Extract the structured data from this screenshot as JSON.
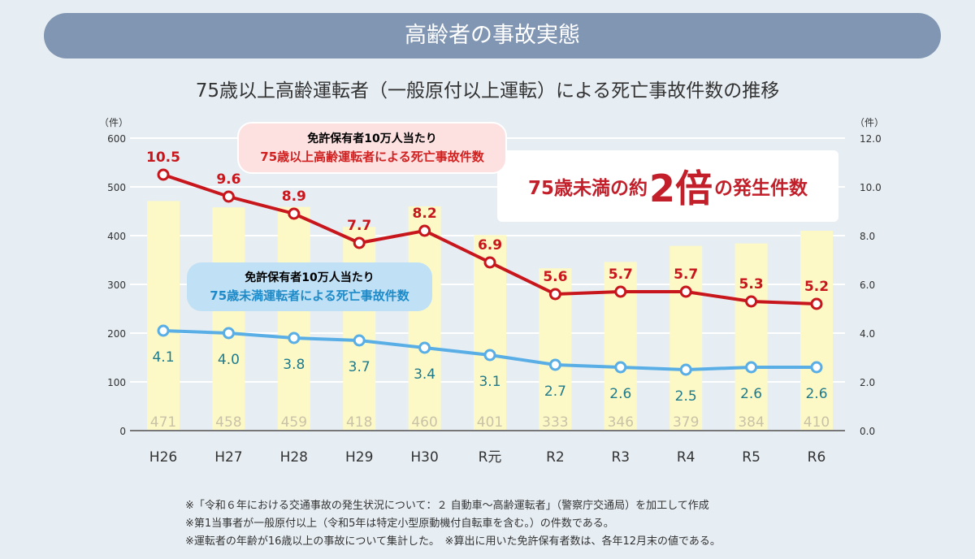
{
  "banner": {
    "title": "高齢者の事故実態"
  },
  "chart_data": {
    "type": "bar+line",
    "title": "75歳以上高齢運転者（一般原付以上運転）による死亡事故件数の推移",
    "categories": [
      "H26",
      "H27",
      "H28",
      "H29",
      "H30",
      "R元",
      "R2",
      "R3",
      "R4",
      "R5",
      "R6"
    ],
    "left_axis": {
      "unit": "（件）",
      "range": [
        0,
        600
      ],
      "ticks": [
        "0",
        "100",
        "200",
        "300",
        "400",
        "500",
        "600"
      ]
    },
    "right_axis": {
      "unit": "（件）",
      "range": [
        0,
        12
      ],
      "ticks": [
        "0.0",
        "2.0",
        "4.0",
        "6.0",
        "8.0",
        "10.0",
        "12.0"
      ]
    },
    "bars": {
      "axis": "left",
      "values": [
        471,
        458,
        459,
        418,
        460,
        401,
        333,
        346,
        379,
        384,
        410
      ],
      "color": "#fdf9c6"
    },
    "series": [
      {
        "name": "免許保有者10万人当たり 75歳以上高齢運転者による死亡事故件数",
        "axis": "right",
        "color": "#c8161d",
        "values": [
          10.5,
          9.6,
          8.9,
          7.7,
          8.2,
          6.9,
          5.6,
          5.7,
          5.7,
          5.3,
          5.2
        ],
        "labels": [
          "10.5",
          "9.6",
          "8.9",
          "7.7",
          "8.2",
          "6.9",
          "5.6",
          "5.7",
          "5.7",
          "5.3",
          "5.2"
        ]
      },
      {
        "name": "免許保有者10万人当たり 75歳未満運転者による死亡事故件数",
        "axis": "right",
        "color": "#5aaee6",
        "values": [
          4.1,
          4.0,
          3.8,
          3.7,
          3.4,
          3.1,
          2.7,
          2.6,
          2.5,
          2.6,
          2.6
        ],
        "labels": [
          "4.1",
          "4.0",
          "3.8",
          "3.7",
          "3.4",
          "3.1",
          "2.7",
          "2.6",
          "2.5",
          "2.6",
          "2.6"
        ]
      }
    ],
    "grid": true
  },
  "callouts": {
    "red": {
      "line1": "免許保有者10万人当たり",
      "line2": "75歳以上高齢運転者による死亡事故件数"
    },
    "blue": {
      "line1": "免許保有者10万人当たり",
      "line2": "75歳未満運転者による死亡事故件数"
    },
    "highlight": {
      "pre": "75歳未満の約",
      "big": "2倍",
      "post": "の発生件数"
    }
  },
  "notes": [
    "※「令和６年における交通事故の発生状況について：２ 自動車〜高齢運転者」（警察庁交通局）を加工して作成",
    "※第1当事者が一般原付以上（令和5年は特定小型原動機付自転車を含む。）の件数である。",
    "※運転者の年齢が16歳以上の事故について集計した。　※算出に用いた免許保有者数は、各年12月末の値である。"
  ]
}
